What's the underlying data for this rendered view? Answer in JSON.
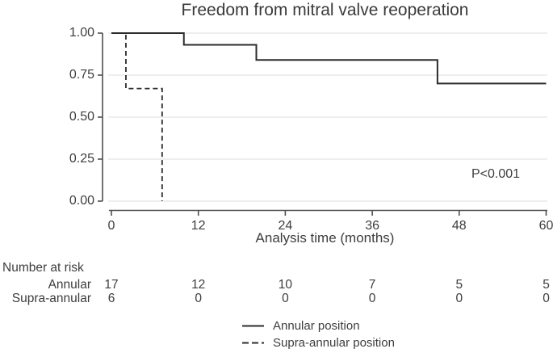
{
  "colors": {
    "background": "#ffffff",
    "line": "#2b2b2b",
    "axis": "#4f4f4f",
    "grid": "#e9e9e9",
    "text": "#3d3d3d"
  },
  "chart_data": {
    "type": "line",
    "subtype": "kaplan-meier-step",
    "title": "Freedom from mitral valve reoperation",
    "xlabel": "Analysis time (months)",
    "ylabel": "",
    "xlim": [
      0,
      60
    ],
    "ylim": [
      0.0,
      1.0
    ],
    "xticks": [
      0,
      12,
      24,
      36,
      48,
      60
    ],
    "yticks": [
      1.0,
      0.75,
      0.5,
      0.25,
      0.0
    ],
    "grid": "horizontal",
    "legend_position": "bottom-center",
    "annotation": {
      "text": "P<0.001"
    },
    "series": [
      {
        "name": "Annular position",
        "line_style": "solid",
        "steps": [
          [
            0,
            1.0
          ],
          [
            10,
            0.93
          ],
          [
            20,
            0.84
          ],
          [
            45,
            0.7
          ]
        ],
        "end_time": 60
      },
      {
        "name": "Supra-annular position",
        "line_style": "dashed",
        "steps": [
          [
            0,
            1.0
          ],
          [
            2,
            0.67
          ],
          [
            7,
            0.0
          ]
        ],
        "end_time": 7
      }
    ]
  },
  "number_at_risk": {
    "header": "Number at risk",
    "times": [
      0,
      12,
      24,
      36,
      48,
      60
    ],
    "rows": [
      {
        "label": "Annular",
        "counts": [
          17,
          12,
          10,
          7,
          5,
          5
        ]
      },
      {
        "label": "Supra-annular",
        "counts": [
          6,
          0,
          0,
          0,
          0,
          0
        ]
      }
    ]
  }
}
